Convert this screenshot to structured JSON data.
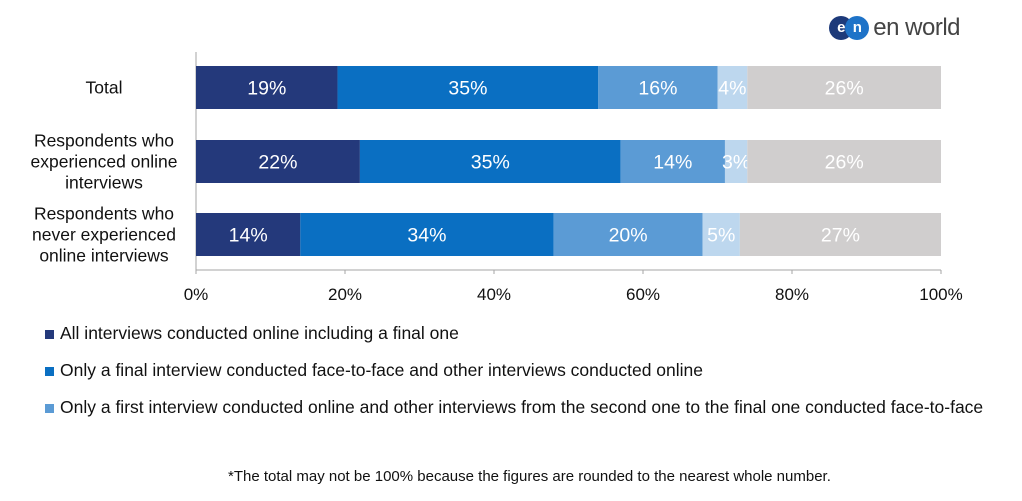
{
  "brand": {
    "logo_letters": [
      "e",
      "n"
    ],
    "name": "en world"
  },
  "chart_data": {
    "type": "bar",
    "orientation": "horizontal",
    "stacked": true,
    "categories": [
      [
        "Total"
      ],
      [
        "Respondents who",
        "experienced online",
        "interviews"
      ],
      [
        "Respondents who",
        "never experienced",
        "online interviews"
      ]
    ],
    "series": [
      {
        "name": "All interviews conducted online including a final one",
        "color": "#24397b",
        "values": [
          19,
          22,
          14
        ],
        "labels": [
          "19%",
          "22%",
          "14%"
        ]
      },
      {
        "name": "Only a final interview conducted face-to-face and other interviews conducted online",
        "color": "#0a6fc2",
        "values": [
          35,
          35,
          34
        ],
        "labels": [
          "35%",
          "35%",
          "34%"
        ]
      },
      {
        "name": "Only a first interview conducted online and other interviews from the second one to the final one conducted face-to-face",
        "color": "#5b9bd5",
        "values": [
          16,
          14,
          20
        ],
        "labels": [
          "16%",
          "14%",
          "20%"
        ]
      },
      {
        "color": "#bdd7ee",
        "values": [
          4,
          3,
          5
        ],
        "labels": [
          "4%",
          "3%",
          "5%"
        ]
      },
      {
        "color": "#d0cece",
        "values": [
          26,
          26,
          27
        ],
        "labels": [
          "26%",
          "26%",
          "27%"
        ]
      }
    ],
    "xticks": [
      "0%",
      "20%",
      "40%",
      "60%",
      "80%",
      "100%"
    ],
    "xlim": [
      0,
      100
    ],
    "grid": false,
    "legend_position": "bottom"
  },
  "footnote": "*The total may not be 100% because the figures are rounded to the nearest whole number."
}
